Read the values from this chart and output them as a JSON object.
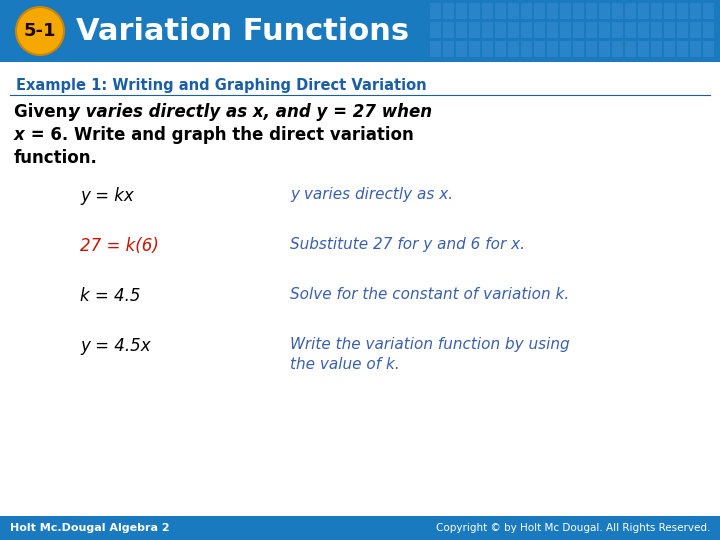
{
  "title_text": "Variation Functions",
  "title_badge": "5-1",
  "header_bg_color": "#1a7abf",
  "header_text_color": "#ffffff",
  "badge_bg_color": "#f5a800",
  "badge_text_color": "#1a1a00",
  "body_bg_color": "#ffffff",
  "footer_bg_color": "#1a7abf",
  "footer_left": "Holt Mc.Dougal Algebra 2",
  "footer_right": "Copyright © by Holt Mc Dougal. All Rights Reserved.",
  "example_title": "Example 1: Writing and Graphing Direct Variation",
  "example_title_color": "#1a5ea8",
  "rows": [
    {
      "left": "y = kx",
      "left_color": "#000000",
      "right": "y varies directly as x.",
      "right_color": "#3a5fb0"
    },
    {
      "left": "27 = k(6)",
      "left_color": "#cc1100",
      "right": "Substitute 27 for y and 6 for x.",
      "right_color": "#3a5fb0"
    },
    {
      "left": "k = 4.5",
      "left_color": "#000000",
      "right": "Solve for the constant of variation k.",
      "right_color": "#3a5fb0"
    },
    {
      "left": "y = 4.5x",
      "left_color": "#000000",
      "right": "Write the variation function by using\nthe value of k.",
      "right_color": "#3a5fb0"
    }
  ]
}
